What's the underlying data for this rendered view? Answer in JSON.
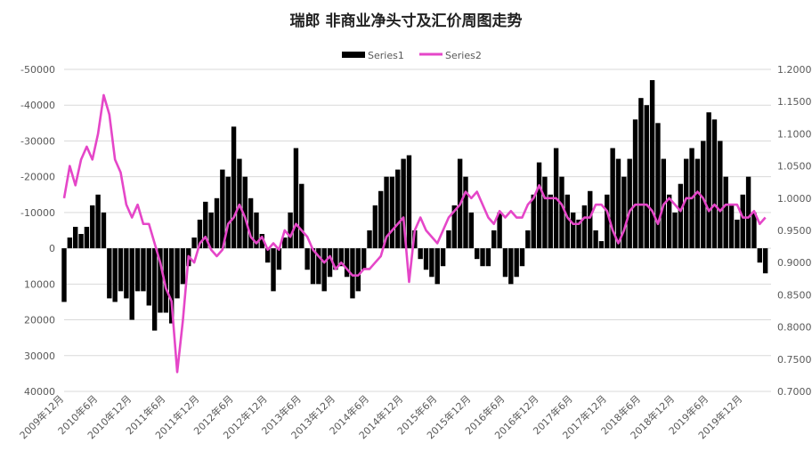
{
  "chart_data": {
    "type": "bar+line",
    "title": "瑞郎 非商业净头寸及汇价周图走势",
    "legend": {
      "position": "top",
      "entries": [
        "Series1",
        "Series2"
      ]
    },
    "colors": {
      "series1": "#000000",
      "series2": "#e546c8",
      "axis_text": "#595959",
      "grid": "#d9d9d9"
    },
    "grid": true,
    "y_left": {
      "reversed": true,
      "lim": [
        -50000,
        40000
      ],
      "ticks": [
        -50000,
        -40000,
        -30000,
        -20000,
        -10000,
        0,
        10000,
        20000,
        30000,
        40000
      ],
      "tick_labels": [
        "-50000",
        "-40000",
        "-30000",
        "-20000",
        "-10000",
        "0",
        "10000",
        "20000",
        "30000",
        "40000"
      ]
    },
    "y_right": {
      "lim": [
        0.7,
        1.2
      ],
      "ticks": [
        0.7,
        0.75,
        0.8,
        0.85,
        0.9,
        0.95,
        1.0,
        1.05,
        1.1,
        1.15,
        1.2
      ],
      "tick_labels": [
        "0.7000",
        "0.7500",
        "0.8000",
        "0.8500",
        "0.9000",
        "0.9500",
        "1.0000",
        "1.0500",
        "1.1000",
        "1.1500",
        "1.2000"
      ]
    },
    "x_tick_labels": [
      "2009年12月",
      "2010年6月",
      "2010年12月",
      "2011年6月",
      "2011年12月",
      "2012年6月",
      "2012年12月",
      "2013年6月",
      "2013年12月",
      "2014年6月",
      "2014年12月",
      "2015年6月",
      "2015年12月",
      "2016年6月",
      "2016年12月",
      "2017年6月",
      "2017年12月",
      "2018年6月",
      "2018年12月",
      "2019年6月",
      "2019年12月"
    ],
    "x_domain_months": [
      "2009-12",
      "2020-05"
    ],
    "series": [
      {
        "name": "Series1",
        "type": "bar",
        "axis": "left",
        "points": [
          [
            "2009-12",
            15000
          ],
          [
            "2010-01",
            -3000
          ],
          [
            "2010-02",
            -6000
          ],
          [
            "2010-03",
            -4000
          ],
          [
            "2010-04",
            -6000
          ],
          [
            "2010-05",
            -12000
          ],
          [
            "2010-06",
            -15000
          ],
          [
            "2010-07",
            -10000
          ],
          [
            "2010-08",
            14000
          ],
          [
            "2010-09",
            15000
          ],
          [
            "2010-10",
            12000
          ],
          [
            "2010-11",
            14000
          ],
          [
            "2010-12",
            20000
          ],
          [
            "2011-01",
            12000
          ],
          [
            "2011-02",
            12000
          ],
          [
            "2011-03",
            16000
          ],
          [
            "2011-04",
            23000
          ],
          [
            "2011-05",
            18000
          ],
          [
            "2011-06",
            18000
          ],
          [
            "2011-07",
            21000
          ],
          [
            "2011-08",
            14000
          ],
          [
            "2011-09",
            10000
          ],
          [
            "2011-10",
            5000
          ],
          [
            "2011-11",
            -3000
          ],
          [
            "2011-12",
            -8000
          ],
          [
            "2012-01",
            -13000
          ],
          [
            "2012-02",
            -10000
          ],
          [
            "2012-03",
            -14000
          ],
          [
            "2012-04",
            -22000
          ],
          [
            "2012-05",
            -20000
          ],
          [
            "2012-06",
            -34000
          ],
          [
            "2012-07",
            -25000
          ],
          [
            "2012-08",
            -20000
          ],
          [
            "2012-09",
            -14000
          ],
          [
            "2012-10",
            -10000
          ],
          [
            "2012-11",
            -4000
          ],
          [
            "2012-12",
            4000
          ],
          [
            "2013-01",
            12000
          ],
          [
            "2013-02",
            6000
          ],
          [
            "2013-03",
            -3000
          ],
          [
            "2013-04",
            -10000
          ],
          [
            "2013-05",
            -28000
          ],
          [
            "2013-06",
            -18000
          ],
          [
            "2013-07",
            6000
          ],
          [
            "2013-08",
            10000
          ],
          [
            "2013-09",
            10000
          ],
          [
            "2013-10",
            12000
          ],
          [
            "2013-11",
            8000
          ],
          [
            "2013-12",
            6000
          ],
          [
            "2014-01",
            5000
          ],
          [
            "2014-02",
            8000
          ],
          [
            "2014-03",
            14000
          ],
          [
            "2014-04",
            12000
          ],
          [
            "2014-05",
            6000
          ],
          [
            "2014-06",
            -5000
          ],
          [
            "2014-07",
            -12000
          ],
          [
            "2014-08",
            -16000
          ],
          [
            "2014-09",
            -20000
          ],
          [
            "2014-10",
            -20000
          ],
          [
            "2014-11",
            -22000
          ],
          [
            "2014-12",
            -25000
          ],
          [
            "2015-01",
            -26000
          ],
          [
            "2015-02",
            -5000
          ],
          [
            "2015-03",
            3000
          ],
          [
            "2015-04",
            6000
          ],
          [
            "2015-05",
            8000
          ],
          [
            "2015-06",
            10000
          ],
          [
            "2015-07",
            5000
          ],
          [
            "2015-08",
            -5000
          ],
          [
            "2015-09",
            -12000
          ],
          [
            "2015-10",
            -25000
          ],
          [
            "2015-11",
            -20000
          ],
          [
            "2015-12",
            -10000
          ],
          [
            "2016-01",
            3000
          ],
          [
            "2016-02",
            5000
          ],
          [
            "2016-03",
            5000
          ],
          [
            "2016-04",
            -5000
          ],
          [
            "2016-05",
            -10000
          ],
          [
            "2016-06",
            8000
          ],
          [
            "2016-07",
            10000
          ],
          [
            "2016-08",
            8000
          ],
          [
            "2016-09",
            5000
          ],
          [
            "2016-10",
            -5000
          ],
          [
            "2016-11",
            -15000
          ],
          [
            "2016-12",
            -24000
          ],
          [
            "2017-01",
            -20000
          ],
          [
            "2017-02",
            -15000
          ],
          [
            "2017-03",
            -28000
          ],
          [
            "2017-04",
            -20000
          ],
          [
            "2017-05",
            -15000
          ],
          [
            "2017-06",
            -10000
          ],
          [
            "2017-07",
            -8000
          ],
          [
            "2017-08",
            -12000
          ],
          [
            "2017-09",
            -16000
          ],
          [
            "2017-10",
            -5000
          ],
          [
            "2017-11",
            -2000
          ],
          [
            "2017-12",
            -15000
          ],
          [
            "2018-01",
            -28000
          ],
          [
            "2018-02",
            -25000
          ],
          [
            "2018-03",
            -20000
          ],
          [
            "2018-04",
            -25000
          ],
          [
            "2018-05",
            -36000
          ],
          [
            "2018-06",
            -42000
          ],
          [
            "2018-07",
            -40000
          ],
          [
            "2018-08",
            -47000
          ],
          [
            "2018-09",
            -35000
          ],
          [
            "2018-10",
            -25000
          ],
          [
            "2018-11",
            -15000
          ],
          [
            "2018-12",
            -10000
          ],
          [
            "2019-01",
            -18000
          ],
          [
            "2019-02",
            -25000
          ],
          [
            "2019-03",
            -28000
          ],
          [
            "2019-04",
            -25000
          ],
          [
            "2019-05",
            -30000
          ],
          [
            "2019-06",
            -38000
          ],
          [
            "2019-07",
            -36000
          ],
          [
            "2019-08",
            -30000
          ],
          [
            "2019-09",
            -20000
          ],
          [
            "2019-10",
            -12000
          ],
          [
            "2019-11",
            -8000
          ],
          [
            "2019-12",
            -15000
          ],
          [
            "2020-01",
            -20000
          ],
          [
            "2020-02",
            -10000
          ],
          [
            "2020-03",
            4000
          ],
          [
            "2020-04",
            7000
          ]
        ]
      },
      {
        "name": "Series2",
        "type": "line",
        "axis": "right",
        "points": [
          [
            "2009-12",
            1.0
          ],
          [
            "2010-01",
            1.05
          ],
          [
            "2010-02",
            1.02
          ],
          [
            "2010-03",
            1.06
          ],
          [
            "2010-04",
            1.08
          ],
          [
            "2010-05",
            1.06
          ],
          [
            "2010-06",
            1.1
          ],
          [
            "2010-07",
            1.16
          ],
          [
            "2010-08",
            1.13
          ],
          [
            "2010-09",
            1.06
          ],
          [
            "2010-10",
            1.04
          ],
          [
            "2010-11",
            0.99
          ],
          [
            "2010-12",
            0.97
          ],
          [
            "2011-01",
            0.99
          ],
          [
            "2011-02",
            0.96
          ],
          [
            "2011-03",
            0.96
          ],
          [
            "2011-04",
            0.93
          ],
          [
            "2011-05",
            0.9
          ],
          [
            "2011-06",
            0.86
          ],
          [
            "2011-07",
            0.84
          ],
          [
            "2011-08",
            0.73
          ],
          [
            "2011-09",
            0.81
          ],
          [
            "2011-10",
            0.91
          ],
          [
            "2011-11",
            0.9
          ],
          [
            "2011-12",
            0.93
          ],
          [
            "2012-01",
            0.94
          ],
          [
            "2012-02",
            0.92
          ],
          [
            "2012-03",
            0.91
          ],
          [
            "2012-04",
            0.92
          ],
          [
            "2012-05",
            0.96
          ],
          [
            "2012-06",
            0.97
          ],
          [
            "2012-07",
            0.99
          ],
          [
            "2012-08",
            0.97
          ],
          [
            "2012-09",
            0.94
          ],
          [
            "2012-10",
            0.93
          ],
          [
            "2012-11",
            0.94
          ],
          [
            "2012-12",
            0.92
          ],
          [
            "2013-01",
            0.93
          ],
          [
            "2013-02",
            0.92
          ],
          [
            "2013-03",
            0.95
          ],
          [
            "2013-04",
            0.94
          ],
          [
            "2013-05",
            0.96
          ],
          [
            "2013-06",
            0.95
          ],
          [
            "2013-07",
            0.94
          ],
          [
            "2013-08",
            0.92
          ],
          [
            "2013-09",
            0.91
          ],
          [
            "2013-10",
            0.9
          ],
          [
            "2013-11",
            0.91
          ],
          [
            "2013-12",
            0.89
          ],
          [
            "2014-01",
            0.9
          ],
          [
            "2014-02",
            0.89
          ],
          [
            "2014-03",
            0.88
          ],
          [
            "2014-04",
            0.88
          ],
          [
            "2014-05",
            0.89
          ],
          [
            "2014-06",
            0.89
          ],
          [
            "2014-07",
            0.9
          ],
          [
            "2014-08",
            0.91
          ],
          [
            "2014-09",
            0.94
          ],
          [
            "2014-10",
            0.95
          ],
          [
            "2014-11",
            0.96
          ],
          [
            "2014-12",
            0.97
          ],
          [
            "2015-01",
            0.87
          ],
          [
            "2015-02",
            0.95
          ],
          [
            "2015-03",
            0.97
          ],
          [
            "2015-04",
            0.95
          ],
          [
            "2015-05",
            0.94
          ],
          [
            "2015-06",
            0.93
          ],
          [
            "2015-07",
            0.95
          ],
          [
            "2015-08",
            0.97
          ],
          [
            "2015-09",
            0.98
          ],
          [
            "2015-10",
            0.99
          ],
          [
            "2015-11",
            1.01
          ],
          [
            "2015-12",
            1.0
          ],
          [
            "2016-01",
            1.01
          ],
          [
            "2016-02",
            0.99
          ],
          [
            "2016-03",
            0.97
          ],
          [
            "2016-04",
            0.96
          ],
          [
            "2016-05",
            0.98
          ],
          [
            "2016-06",
            0.97
          ],
          [
            "2016-07",
            0.98
          ],
          [
            "2016-08",
            0.97
          ],
          [
            "2016-09",
            0.97
          ],
          [
            "2016-10",
            0.99
          ],
          [
            "2016-11",
            1.0
          ],
          [
            "2016-12",
            1.02
          ],
          [
            "2017-01",
            1.0
          ],
          [
            "2017-02",
            1.0
          ],
          [
            "2017-03",
            1.0
          ],
          [
            "2017-04",
            0.99
          ],
          [
            "2017-05",
            0.97
          ],
          [
            "2017-06",
            0.96
          ],
          [
            "2017-07",
            0.96
          ],
          [
            "2017-08",
            0.97
          ],
          [
            "2017-09",
            0.97
          ],
          [
            "2017-10",
            0.99
          ],
          [
            "2017-11",
            0.99
          ],
          [
            "2017-12",
            0.98
          ],
          [
            "2018-01",
            0.95
          ],
          [
            "2018-02",
            0.93
          ],
          [
            "2018-03",
            0.95
          ],
          [
            "2018-04",
            0.98
          ],
          [
            "2018-05",
            0.99
          ],
          [
            "2018-06",
            0.99
          ],
          [
            "2018-07",
            0.99
          ],
          [
            "2018-08",
            0.98
          ],
          [
            "2018-09",
            0.96
          ],
          [
            "2018-10",
            0.99
          ],
          [
            "2018-11",
            1.0
          ],
          [
            "2018-12",
            0.99
          ],
          [
            "2019-01",
            0.98
          ],
          [
            "2019-02",
            1.0
          ],
          [
            "2019-03",
            1.0
          ],
          [
            "2019-04",
            1.01
          ],
          [
            "2019-05",
            1.0
          ],
          [
            "2019-06",
            0.98
          ],
          [
            "2019-07",
            0.99
          ],
          [
            "2019-08",
            0.98
          ],
          [
            "2019-09",
            0.99
          ],
          [
            "2019-10",
            0.99
          ],
          [
            "2019-11",
            0.99
          ],
          [
            "2019-12",
            0.97
          ],
          [
            "2020-01",
            0.97
          ],
          [
            "2020-02",
            0.98
          ],
          [
            "2020-03",
            0.96
          ],
          [
            "2020-04",
            0.97
          ]
        ]
      }
    ]
  }
}
